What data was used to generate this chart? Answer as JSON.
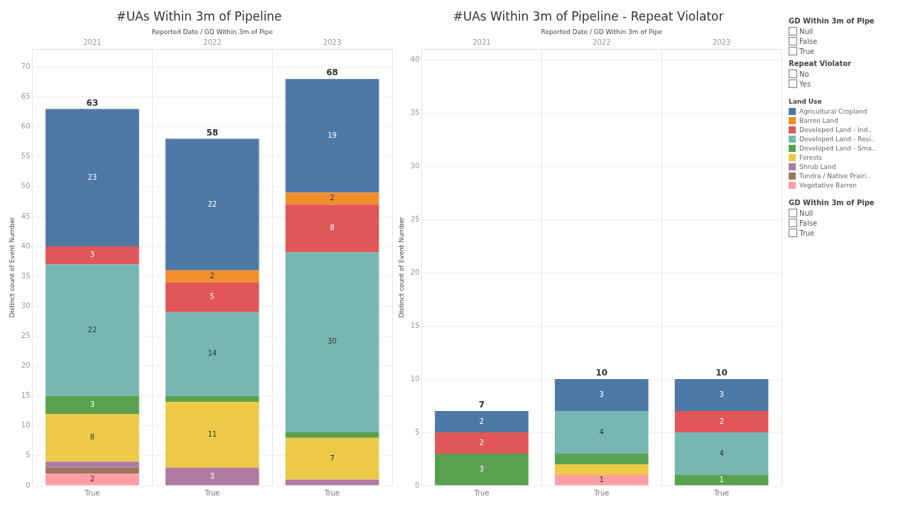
{
  "chart_data": [
    {
      "type": "bar",
      "title": "#UAs Within 3m of Pipeline",
      "xlabel": "Reported Date / GD Within 3m of Pipe",
      "ylabel": "Distinct count of Event Number",
      "categories": [
        "2021",
        "2022",
        "2023"
      ],
      "stacked": true,
      "ylim": [
        0,
        73
      ],
      "yticks": [
        0,
        5,
        10,
        15,
        20,
        25,
        30,
        35,
        40,
        45,
        50,
        55,
        60,
        65,
        70
      ],
      "grid": true,
      "legend": "right",
      "legend_title": "Land Use",
      "totals": [
        "63",
        "58",
        "68"
      ],
      "annotations": [
        "True",
        "True",
        "True"
      ],
      "series": [
        {
          "name": "Vegetative Barren",
          "color": "#ff9da7",
          "values": [
            2,
            null,
            null
          ],
          "value_labels": [
            "2",
            null,
            null
          ]
        },
        {
          "name": "Tundra / Native Prairi..",
          "color": "#9c755f",
          "values": [
            1,
            null,
            null
          ],
          "value_labels": [
            null,
            null,
            null
          ]
        },
        {
          "name": "Shrub Land",
          "color": "#b07aa1",
          "values": [
            1,
            3,
            1
          ],
          "value_labels": [
            null,
            "3",
            null
          ]
        },
        {
          "name": "Forests",
          "color": "#edc948",
          "values": [
            8,
            11,
            7
          ],
          "value_labels": [
            "8",
            "11",
            "7"
          ]
        },
        {
          "name": "Developed Land - Sma..",
          "color": "#59a14f",
          "values": [
            3,
            1,
            1
          ],
          "value_labels": [
            "3",
            null,
            null
          ]
        },
        {
          "name": "Developed Land - Resi..",
          "color": "#76b7b2",
          "values": [
            22,
            14,
            30
          ],
          "value_labels": [
            "22",
            "14",
            "30"
          ]
        },
        {
          "name": "Developed Land - Ind..",
          "color": "#e15759",
          "values": [
            3,
            5,
            8
          ],
          "value_labels": [
            "3",
            "5",
            "8"
          ]
        },
        {
          "name": "Barren Land",
          "color": "#f28e2b",
          "values": [
            null,
            2,
            2
          ],
          "value_labels": [
            null,
            "2",
            "2"
          ]
        },
        {
          "name": "Agricultural Cropland",
          "color": "#4e79a7",
          "values": [
            23,
            22,
            19
          ],
          "value_labels": [
            "23",
            "22",
            "19"
          ]
        }
      ]
    },
    {
      "type": "bar",
      "title": "#UAs Within 3m of Pipeline - Repeat Violator",
      "xlabel": "Reported Date / GD Within 3m of Pipe",
      "ylabel": "Distinct count of Event Number",
      "categories": [
        "2021",
        "2022",
        "2023"
      ],
      "stacked": true,
      "ylim": [
        0,
        41
      ],
      "yticks": [
        0,
        5,
        10,
        15,
        20,
        25,
        30,
        35,
        40
      ],
      "grid": true,
      "legend": "right",
      "totals": [
        "7",
        "10",
        "10"
      ],
      "annotations": [
        "True",
        "True",
        "True"
      ],
      "series": [
        {
          "name": "Vegetative Barren",
          "color": "#ff9da7",
          "values": [
            null,
            1,
            null
          ],
          "value_labels": [
            null,
            "1",
            null
          ]
        },
        {
          "name": "Forests",
          "color": "#edc948",
          "values": [
            null,
            1,
            null
          ],
          "value_labels": [
            null,
            null,
            null
          ]
        },
        {
          "name": "Developed Land - Sma..",
          "color": "#59a14f",
          "values": [
            3,
            1,
            1
          ],
          "value_labels": [
            "3",
            null,
            "1"
          ]
        },
        {
          "name": "Developed Land - Resi..",
          "color": "#76b7b2",
          "values": [
            null,
            4,
            4
          ],
          "value_labels": [
            null,
            "4",
            "4"
          ]
        },
        {
          "name": "Developed Land - Ind..",
          "color": "#e15759",
          "values": [
            2,
            null,
            2
          ],
          "value_labels": [
            "2",
            null,
            "2"
          ]
        },
        {
          "name": "Agricultural Cropland",
          "color": "#4e79a7",
          "values": [
            2,
            3,
            3
          ],
          "value_labels": [
            "2",
            "3",
            "3"
          ]
        }
      ]
    },
    {
      "type": "other",
      "annotations": [
        "GD Within 3m of Pipe",
        "Null",
        "False",
        "True",
        "Repeat Violator",
        "No",
        "Yes"
      ]
    },
    {
      "type": "other",
      "annotations": [
        "GD Within 3m of Pipe",
        "Null",
        "False",
        "True"
      ]
    }
  ]
}
